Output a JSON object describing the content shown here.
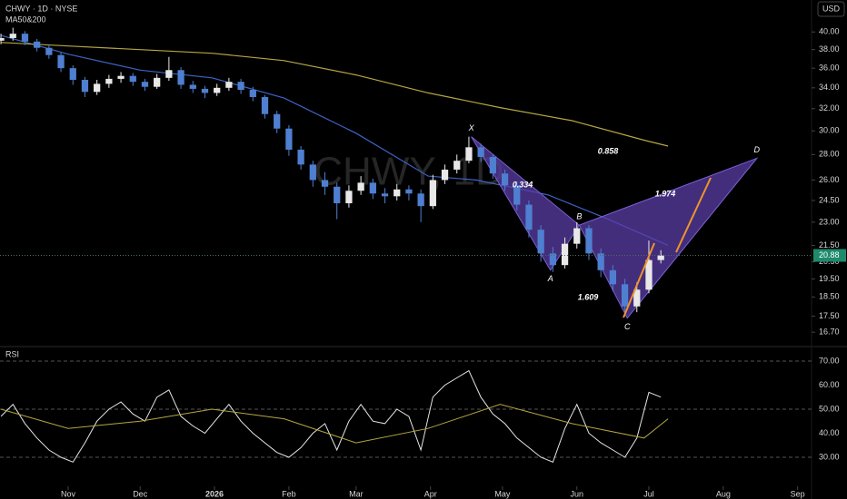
{
  "chart_data": [
    {
      "type": "candlestick",
      "title": "CHWY · 1D · NYSE",
      "indicator_label": "MA50&200",
      "currency": "USD",
      "watermark": "CHWY, 1D",
      "log_scale": true,
      "grid": false,
      "up_color": "#e8e8e8",
      "down_color": "#4f7fd0",
      "xlim": [
        1.6,
        339.8
      ],
      "xticks": [
        {
          "value": 30,
          "label": "Nov"
        },
        {
          "value": 60,
          "label": "Dec"
        },
        {
          "value": 91,
          "label": "2026"
        },
        {
          "value": 122,
          "label": "Feb"
        },
        {
          "value": 150,
          "label": "Mar"
        },
        {
          "value": 181,
          "label": "Apr"
        },
        {
          "value": 211,
          "label": "May"
        },
        {
          "value": 242,
          "label": "Jun"
        },
        {
          "value": 272,
          "label": "Jul"
        },
        {
          "value": 303,
          "label": "Aug"
        },
        {
          "value": 334,
          "label": "Sep"
        }
      ],
      "ylim": [
        16.1,
        43.9
      ],
      "yticks": [
        {
          "value": 40,
          "label": "40.00"
        },
        {
          "value": 38,
          "label": "38.00"
        },
        {
          "value": 36,
          "label": "36.00"
        },
        {
          "value": 34,
          "label": "34.00"
        },
        {
          "value": 32,
          "label": "32.00"
        },
        {
          "value": 30,
          "label": "30.00"
        },
        {
          "value": 28,
          "label": "28.00"
        },
        {
          "value": 26,
          "label": "26.00"
        },
        {
          "value": 24.5,
          "label": "24.50"
        },
        {
          "value": 23,
          "label": "23.00"
        },
        {
          "value": 21.5,
          "label": "21.50"
        },
        {
          "value": 20.5,
          "label": "20.50"
        },
        {
          "value": 19.5,
          "label": "19.50"
        },
        {
          "value": 18.5,
          "label": "18.50"
        },
        {
          "value": 17.5,
          "label": "17.50"
        },
        {
          "value": 16.7,
          "label": "16.70"
        }
      ],
      "candles": {
        "x": [
          2,
          7,
          12,
          17,
          22,
          27,
          32,
          37,
          42,
          47,
          52,
          57,
          62,
          67,
          72,
          77,
          82,
          87,
          92,
          97,
          102,
          107,
          112,
          117,
          122,
          127,
          132,
          137,
          142,
          147,
          152,
          157,
          162,
          167,
          172,
          177,
          182,
          187,
          192,
          197,
          202,
          207,
          212,
          217,
          222,
          227,
          232,
          237,
          242,
          247,
          252,
          257,
          262,
          267,
          272,
          277
        ],
        "open": [
          39.0,
          39.3,
          39.8,
          38.9,
          38.2,
          37.4,
          36.0,
          34.8,
          33.6,
          34.4,
          34.9,
          35.2,
          34.6,
          34.1,
          35.0,
          35.8,
          34.3,
          33.9,
          33.5,
          34.0,
          34.6,
          33.8,
          33.1,
          31.5,
          30.2,
          28.4,
          27.2,
          26.0,
          25.5,
          24.3,
          25.2,
          25.8,
          25.0,
          24.8,
          25.3,
          25.0,
          24.1,
          26.0,
          26.8,
          27.5,
          28.6,
          27.8,
          26.5,
          25.6,
          24.2,
          22.5,
          21.0,
          20.3,
          21.6,
          22.6,
          21.0,
          20.0,
          19.2,
          18.0,
          18.9,
          20.6
        ],
        "high": [
          39.8,
          40.5,
          40.1,
          39.2,
          38.6,
          37.7,
          36.3,
          35.1,
          34.8,
          35.3,
          35.6,
          35.5,
          34.9,
          35.4,
          37.2,
          36.1,
          34.7,
          34.2,
          34.4,
          35.0,
          34.9,
          34.1,
          33.3,
          31.8,
          30.5,
          28.7,
          27.5,
          26.6,
          25.8,
          25.6,
          26.3,
          26.1,
          25.4,
          25.7,
          25.6,
          25.3,
          26.4,
          27.2,
          28.0,
          29.5,
          28.9,
          28.0,
          26.8,
          25.9,
          24.5,
          22.8,
          21.4,
          22.0,
          23.0,
          22.8,
          21.3,
          20.3,
          19.5,
          19.3,
          21.8,
          21.2
        ],
        "low": [
          38.6,
          39.0,
          38.5,
          37.8,
          37.0,
          35.6,
          34.3,
          33.1,
          33.3,
          34.0,
          34.5,
          34.2,
          33.7,
          33.9,
          34.7,
          33.9,
          33.5,
          33.0,
          33.2,
          33.7,
          33.4,
          32.7,
          31.1,
          29.8,
          27.9,
          26.8,
          25.5,
          24.9,
          23.2,
          24.0,
          24.9,
          24.6,
          24.3,
          24.5,
          24.5,
          23.0,
          23.9,
          25.7,
          26.5,
          27.3,
          27.4,
          26.1,
          25.2,
          23.8,
          22.0,
          20.5,
          19.9,
          20.1,
          21.3,
          20.6,
          19.6,
          18.8,
          17.5,
          17.7,
          18.7,
          20.4
        ],
        "close": [
          39.3,
          39.8,
          38.9,
          38.2,
          37.4,
          36.0,
          34.8,
          33.6,
          34.4,
          34.9,
          35.2,
          34.6,
          34.1,
          35.0,
          35.8,
          34.3,
          33.9,
          33.5,
          34.0,
          34.6,
          33.8,
          33.1,
          31.5,
          30.2,
          28.4,
          27.2,
          26.0,
          25.5,
          24.3,
          25.2,
          25.8,
          25.0,
          24.8,
          25.3,
          25.0,
          24.1,
          26.0,
          26.8,
          27.5,
          28.6,
          27.8,
          26.5,
          25.6,
          24.2,
          22.5,
          21.0,
          20.3,
          21.6,
          22.6,
          21.0,
          20.0,
          19.2,
          18.0,
          18.9,
          20.6,
          20.88
        ]
      },
      "series": [
        {
          "color": "#3d64c8",
          "x": [
            2,
            30,
            60,
            90,
            120,
            150,
            180,
            200,
            230,
            255,
            280
          ],
          "values": [
            39.6,
            37.5,
            35.8,
            35.0,
            33.0,
            29.8,
            26.3,
            26.0,
            24.9,
            23.2,
            21.5
          ]
        },
        {
          "color": "#b5a642",
          "x": [
            2,
            30,
            60,
            90,
            120,
            150,
            180,
            210,
            240,
            270,
            280
          ],
          "values": [
            38.8,
            38.4,
            38.0,
            37.6,
            36.8,
            35.3,
            33.5,
            32.1,
            30.9,
            29.2,
            28.7
          ]
        }
      ],
      "pattern": {
        "color": "#5a3ea6",
        "points": [
          {
            "label": "X",
            "x": 198,
            "y": 29.5
          },
          {
            "label": "A",
            "x": 231,
            "y": 20.0
          },
          {
            "label": "B",
            "x": 243,
            "y": 22.8
          },
          {
            "label": "C",
            "x": 263,
            "y": 17.4
          },
          {
            "label": "D",
            "x": 317,
            "y": 27.7
          }
        ],
        "ratios": [
          0.334,
          1.974,
          0.858,
          1.609
        ]
      }
    },
    {
      "type": "line",
      "title": "RSI",
      "ylim": [
        16.4,
        74.9
      ],
      "grid": "dashed-alternate",
      "yticks": [
        {
          "value": 70,
          "label": "70.00"
        },
        {
          "value": 60,
          "label": "60.00"
        },
        {
          "value": 50,
          "label": "50.00"
        },
        {
          "value": 40,
          "label": "40.00"
        },
        {
          "value": 30,
          "label": "30.00"
        }
      ],
      "series": [
        {
          "color": "#e6e6e6",
          "values": [
            47,
            52,
            44,
            38,
            33,
            30,
            28,
            36,
            45,
            50,
            53,
            48,
            45,
            55,
            58,
            47,
            43,
            40,
            46,
            52,
            45,
            40,
            36,
            32,
            30,
            34,
            40,
            44,
            33,
            45,
            52,
            45,
            44,
            50,
            47,
            33,
            55,
            60,
            63,
            66,
            55,
            48,
            44,
            38,
            34,
            30,
            28,
            42,
            52,
            40,
            36,
            33,
            30,
            38,
            57,
            55
          ]
        },
        {
          "color": "#b5a642",
          "x": [
            2,
            30,
            60,
            90,
            120,
            150,
            180,
            210,
            240,
            270,
            280
          ],
          "values": [
            50,
            42,
            45,
            50,
            46,
            36,
            42,
            52,
            44,
            38,
            46
          ]
        }
      ]
    }
  ]
}
